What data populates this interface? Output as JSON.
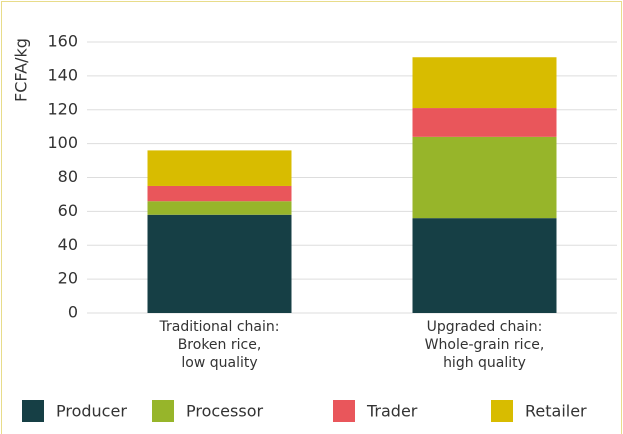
{
  "chart_data": {
    "type": "stacked_bar",
    "y_label": "FCFA/kg",
    "categories": [
      "Traditional chain:\nBroken rice,\nlow quality",
      "Upgraded chain:\nWhole-grain rice,\nhigh quality"
    ],
    "series": [
      {
        "name": "Producer",
        "color": "#163f45",
        "values": [
          58,
          56
        ]
      },
      {
        "name": "Processor",
        "color": "#97b52a",
        "values": [
          8,
          48
        ]
      },
      {
        "name": "Trader",
        "color": "#e9565b",
        "values": [
          9,
          17
        ]
      },
      {
        "name": "Retailer",
        "color": "#d8bc00",
        "values": [
          21,
          30
        ]
      }
    ],
    "ylim": [
      0,
      160
    ],
    "yticks": [
      0,
      20,
      40,
      60,
      80,
      100,
      120,
      140,
      160
    ],
    "grid": true
  }
}
